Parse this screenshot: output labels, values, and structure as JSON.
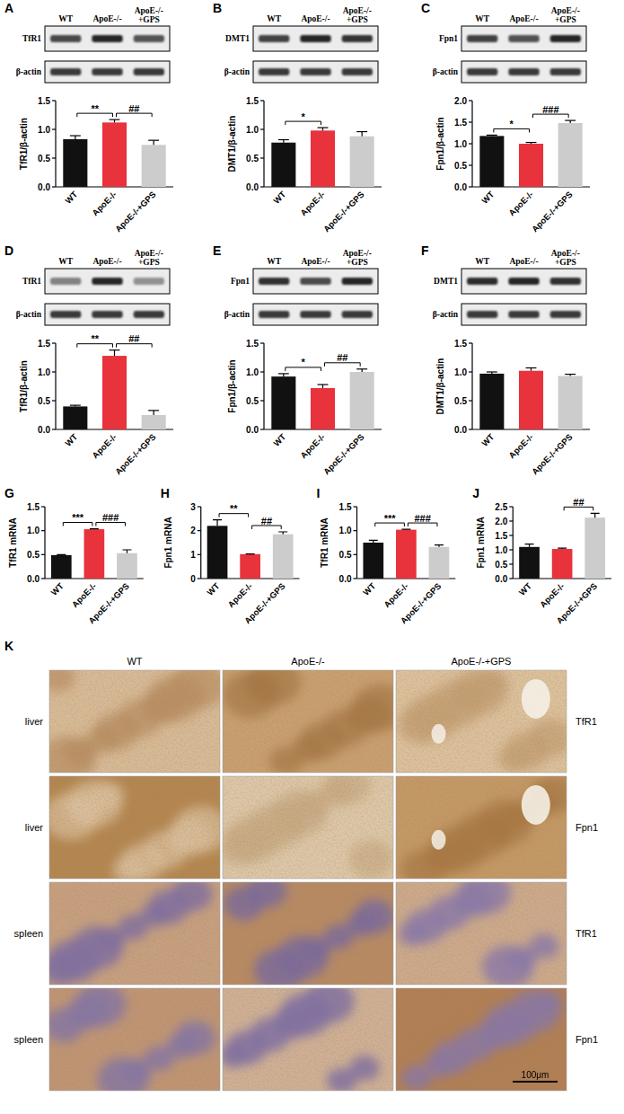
{
  "chart_data": [
    {
      "panel": "A",
      "type": "bar",
      "y_label": "TfR1/β-actin",
      "categories": [
        "WT",
        "ApoE-/-",
        "ApoE-/-+GPS"
      ],
      "values": [
        0.83,
        1.12,
        0.73
      ],
      "errors": [
        0.06,
        0.05,
        0.08
      ],
      "colors": [
        "#111111",
        "#e8323c",
        "#cccccc"
      ],
      "ylim": [
        0,
        1.5
      ],
      "yticks": [
        {
          "value": 0,
          "label": "0.0"
        },
        0.5,
        {
          "value": 1,
          "label": "1.0"
        },
        1.5
      ],
      "significance": [
        {
          "between": [
            "WT",
            "ApoE-/-"
          ],
          "label": "**"
        },
        {
          "between": [
            "ApoE-/-",
            "ApoE-/-+GPS"
          ],
          "label": "##"
        }
      ],
      "blot": {
        "lanes": [
          "WT",
          "ApoE-/-",
          "ApoE-/-+GPS"
        ],
        "bands": [
          "TfR1",
          "β-actin"
        ]
      }
    },
    {
      "panel": "B",
      "type": "bar",
      "y_label": "DMT1/β-actin",
      "categories": [
        "WT",
        "ApoE-/-",
        "ApoE-/-+GPS"
      ],
      "values": [
        0.77,
        0.98,
        0.88
      ],
      "errors": [
        0.05,
        0.05,
        0.08
      ],
      "colors": [
        "#111111",
        "#e8323c",
        "#cccccc"
      ],
      "ylim": [
        0,
        1.5
      ],
      "yticks": [
        {
          "value": 0,
          "label": "0.0"
        },
        0.5,
        {
          "value": 1,
          "label": "1.0"
        },
        1.5
      ],
      "significance": [
        {
          "between": [
            "WT",
            "ApoE-/-"
          ],
          "label": "*"
        }
      ],
      "blot": {
        "lanes": [
          "WT",
          "ApoE-/-",
          "ApoE-/-+GPS"
        ],
        "bands": [
          "DMT1",
          "β-actin"
        ]
      }
    },
    {
      "panel": "C",
      "type": "bar",
      "y_label": "Fpn1/β-actin",
      "categories": [
        "WT",
        "ApoE-/-",
        "ApoE-/-+GPS"
      ],
      "values": [
        1.18,
        1.0,
        1.48
      ],
      "errors": [
        0.02,
        0.03,
        0.06
      ],
      "colors": [
        "#111111",
        "#e8323c",
        "#cccccc"
      ],
      "ylim": [
        0,
        2
      ],
      "yticks": [
        {
          "value": 0,
          "label": "0.0"
        },
        0.5,
        {
          "value": 1,
          "label": "1.0"
        },
        1.5,
        {
          "value": 2,
          "label": "2.0"
        }
      ],
      "significance": [
        {
          "between": [
            "WT",
            "ApoE-/-"
          ],
          "label": "*"
        },
        {
          "between": [
            "ApoE-/-",
            "ApoE-/-+GPS"
          ],
          "label": "###"
        }
      ],
      "blot": {
        "lanes": [
          "WT",
          "ApoE-/-",
          "ApoE-/-+GPS"
        ],
        "bands": [
          "Fpn1",
          "β-actin"
        ]
      }
    },
    {
      "panel": "D",
      "type": "bar",
      "y_label": "TfR1/β-actin",
      "categories": [
        "WT",
        "ApoE-/-",
        "ApoE-/-+GPS"
      ],
      "values": [
        0.4,
        1.28,
        0.25
      ],
      "errors": [
        0.02,
        0.1,
        0.08
      ],
      "colors": [
        "#111111",
        "#e8323c",
        "#cccccc"
      ],
      "ylim": [
        0,
        1.5
      ],
      "yticks": [
        {
          "value": 0,
          "label": "0.0"
        },
        0.5,
        {
          "value": 1,
          "label": "1.0"
        },
        1.5
      ],
      "significance": [
        {
          "between": [
            "WT",
            "ApoE-/-"
          ],
          "label": "**"
        },
        {
          "between": [
            "ApoE-/-",
            "ApoE-/-+GPS"
          ],
          "label": "##"
        }
      ],
      "blot": {
        "lanes": [
          "WT",
          "ApoE-/-",
          "ApoE-/-+GPS"
        ],
        "bands": [
          "TfR1",
          "β-actin"
        ]
      }
    },
    {
      "panel": "E",
      "type": "bar",
      "y_label": "Fpn1/β-actin",
      "categories": [
        "WT",
        "ApoE-/-",
        "ApoE-/-+GPS"
      ],
      "values": [
        0.92,
        0.72,
        1.0
      ],
      "errors": [
        0.05,
        0.06,
        0.05
      ],
      "colors": [
        "#111111",
        "#e8323c",
        "#cccccc"
      ],
      "ylim": [
        0,
        1.5
      ],
      "yticks": [
        {
          "value": 0,
          "label": "0.0"
        },
        0.5,
        {
          "value": 1,
          "label": "1.0"
        },
        1.5
      ],
      "significance": [
        {
          "between": [
            "WT",
            "ApoE-/-"
          ],
          "label": "*"
        },
        {
          "between": [
            "ApoE-/-",
            "ApoE-/-+GPS"
          ],
          "label": "##"
        }
      ],
      "blot": {
        "lanes": [
          "WT",
          "ApoE-/-",
          "ApoE-/-+GPS"
        ],
        "bands": [
          "Fpn1",
          "β-actin"
        ]
      }
    },
    {
      "panel": "F",
      "type": "bar",
      "y_label": "DMT1/β-actin",
      "categories": [
        "WT",
        "ApoE-/-",
        "ApoE-/-+GPS"
      ],
      "values": [
        0.97,
        1.02,
        0.93
      ],
      "errors": [
        0.03,
        0.05,
        0.03
      ],
      "colors": [
        "#111111",
        "#e8323c",
        "#cccccc"
      ],
      "ylim": [
        0,
        1.5
      ],
      "yticks": [
        {
          "value": 0,
          "label": "0.0"
        },
        0.5,
        {
          "value": 1,
          "label": "1.0"
        },
        1.5
      ],
      "blot": {
        "lanes": [
          "WT",
          "ApoE-/-",
          "ApoE-/-+GPS"
        ],
        "bands": [
          "DMT1",
          "β-actin"
        ]
      }
    },
    {
      "panel": "G",
      "type": "bar",
      "y_label": "TfR1 mRNA",
      "categories": [
        "WT",
        "ApoE-/-",
        "ApoE-/-+GPS"
      ],
      "values": [
        0.49,
        1.03,
        0.53
      ],
      "errors": [
        0.01,
        0.01,
        0.07
      ],
      "colors": [
        "#111111",
        "#e8323c",
        "#cccccc"
      ],
      "ylim": [
        0,
        1.5
      ],
      "yticks": [
        {
          "value": 0,
          "label": "0.0"
        },
        0.5,
        {
          "value": 1,
          "label": "1.0"
        },
        1.5
      ],
      "significance": [
        {
          "between": [
            "WT",
            "ApoE-/-"
          ],
          "label": "***"
        },
        {
          "between": [
            "ApoE-/-",
            "ApoE-/-+GPS"
          ],
          "label": "###"
        }
      ]
    },
    {
      "panel": "H",
      "type": "bar",
      "y_label": "Fpn1 mRNA",
      "categories": [
        "WT",
        "ApoE-/-",
        "ApoE-/-+GPS"
      ],
      "values": [
        2.2,
        1.02,
        1.85
      ],
      "errors": [
        0.25,
        0.01,
        0.1
      ],
      "colors": [
        "#111111",
        "#e8323c",
        "#cccccc"
      ],
      "ylim": [
        0,
        3
      ],
      "yticks": [
        0,
        1,
        2,
        3
      ],
      "significance": [
        {
          "between": [
            "WT",
            "ApoE-/-"
          ],
          "label": "**"
        },
        {
          "between": [
            "ApoE-/-",
            "ApoE-/-+GPS"
          ],
          "label": "##"
        }
      ]
    },
    {
      "panel": "I",
      "type": "bar",
      "y_label": "TfR1 mRNA",
      "categories": [
        "WT",
        "ApoE-/-",
        "ApoE-/-+GPS"
      ],
      "values": [
        0.75,
        1.02,
        0.66
      ],
      "errors": [
        0.05,
        0.01,
        0.04
      ],
      "colors": [
        "#111111",
        "#e8323c",
        "#cccccc"
      ],
      "ylim": [
        0,
        1.5
      ],
      "yticks": [
        {
          "value": 0,
          "label": "0.0"
        },
        0.5,
        {
          "value": 1,
          "label": "1.0"
        },
        1.5
      ],
      "significance": [
        {
          "between": [
            "WT",
            "ApoE-/-"
          ],
          "label": "***"
        },
        {
          "between": [
            "ApoE-/-",
            "ApoE-/-+GPS"
          ],
          "label": "###"
        }
      ]
    },
    {
      "panel": "J",
      "type": "bar",
      "y_label": "Fpn1 mRNA",
      "categories": [
        "WT",
        "ApoE-/-",
        "ApoE-/-+GPS"
      ],
      "values": [
        1.1,
        1.03,
        2.12
      ],
      "errors": [
        0.1,
        0.03,
        0.15
      ],
      "colors": [
        "#111111",
        "#e8323c",
        "#cccccc"
      ],
      "ylim": [
        0,
        2.5
      ],
      "yticks": [
        {
          "value": 0,
          "label": "0.0"
        },
        0.5,
        {
          "value": 1,
          "label": "1.0"
        },
        1.5,
        {
          "value": 2,
          "label": "2.0"
        },
        2.5
      ],
      "significance": [
        {
          "between": [
            "ApoE-/-",
            "ApoE-/-+GPS"
          ],
          "label": "##"
        }
      ]
    }
  ],
  "panel_k": {
    "label": "K",
    "columns": [
      "WT",
      "ApoE-/-",
      "ApoE-/-+GPS"
    ],
    "rows": [
      {
        "tissue": "liver",
        "stain": "TfR1"
      },
      {
        "tissue": "liver",
        "stain": "Fpn1"
      },
      {
        "tissue": "spleen",
        "stain": "TfR1"
      },
      {
        "tissue": "spleen",
        "stain": "Fpn1"
      }
    ],
    "scale_bar": "100μm"
  }
}
